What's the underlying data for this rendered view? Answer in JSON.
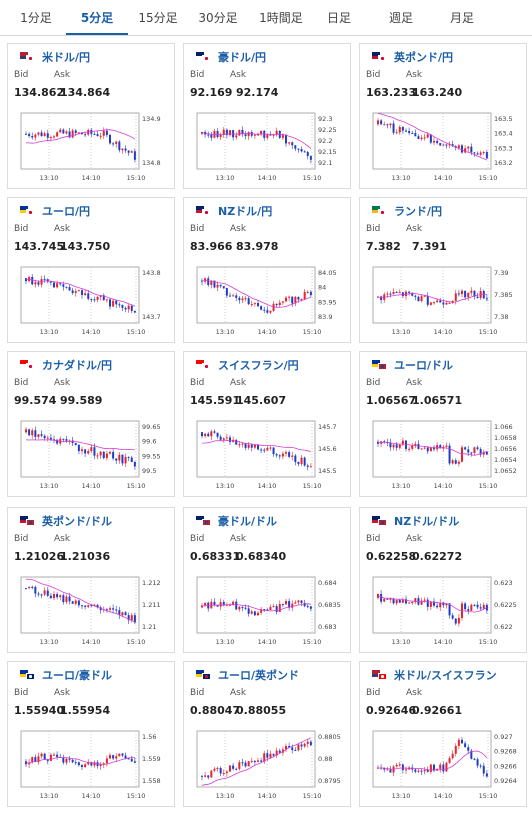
{
  "tabs": [
    {
      "label": "1分足",
      "active": false
    },
    {
      "label": "5分足",
      "active": true
    },
    {
      "label": "15分足",
      "active": false
    },
    {
      "label": "30分足",
      "active": false
    },
    {
      "label": "1時間足",
      "active": false
    },
    {
      "label": "日足",
      "active": false
    },
    {
      "label": "週足",
      "active": false
    },
    {
      "label": "月足",
      "active": false
    }
  ],
  "labels": {
    "bid": "Bid",
    "ask": "Ask"
  },
  "colors": {
    "accent": "#1a5ea8",
    "up": "#e8222a",
    "down": "#1f3cc8",
    "ma": "#d63cd6"
  },
  "cards": [
    {
      "pair": "米ドル/円",
      "flags": [
        "us",
        "jp"
      ],
      "bid": "134.862",
      "ask": "134.864",
      "chart_data": {
        "type": "candlestick",
        "x_ticks": [
          "13:10",
          "14:10",
          "15:10"
        ],
        "y_ticks": [
          "134.9",
          "134.8"
        ],
        "trend": "flat-down",
        "ma": "rising"
      }
    },
    {
      "pair": "豪ドル/円",
      "flags": [
        "au",
        "jp"
      ],
      "bid": "92.169",
      "ask": "92.174",
      "chart_data": {
        "type": "candlestick",
        "x_ticks": [
          "13:10",
          "14:10",
          "15:10"
        ],
        "y_ticks": [
          "92.3",
          "92.25",
          "92.2",
          "92.15",
          "92.1"
        ],
        "trend": "flat-down",
        "ma": "flat"
      }
    },
    {
      "pair": "英ポンド/円",
      "flags": [
        "gb",
        "jp"
      ],
      "bid": "163.233",
      "ask": "163.240",
      "chart_data": {
        "type": "candlestick",
        "x_ticks": [
          "13:10",
          "14:10",
          "15:10"
        ],
        "y_ticks": [
          "163.5",
          "163.4",
          "163.3",
          "163.2"
        ],
        "trend": "down",
        "ma": "falling"
      }
    },
    {
      "pair": "ユーロ/円",
      "flags": [
        "eu",
        "jp"
      ],
      "bid": "143.745",
      "ask": "143.750",
      "chart_data": {
        "type": "candlestick",
        "x_ticks": [
          "13:10",
          "14:10",
          "15:10"
        ],
        "y_ticks": [
          "143.8",
          "143.7"
        ],
        "trend": "down",
        "ma": "flat"
      }
    },
    {
      "pair": "NZドル/円",
      "flags": [
        "nz",
        "jp"
      ],
      "bid": "83.966",
      "ask": "83.978",
      "chart_data": {
        "type": "candlestick",
        "x_ticks": [
          "13:10",
          "14:10",
          "15:10"
        ],
        "y_ticks": [
          "84.05",
          "84",
          "83.95",
          "83.9"
        ],
        "trend": "down-up",
        "ma": "flat"
      }
    },
    {
      "pair": "ランド/円",
      "flags": [
        "za",
        "jp"
      ],
      "bid": "7.382",
      "ask": "7.391",
      "chart_data": {
        "type": "candlestick",
        "x_ticks": [
          "13:10",
          "14:10",
          "15:10"
        ],
        "y_ticks": [
          "7.39",
          "7.385",
          "7.38"
        ],
        "trend": "flat",
        "ma": "flat"
      }
    },
    {
      "pair": "カナダドル/円",
      "flags": [
        "ca",
        "jp"
      ],
      "bid": "99.574",
      "ask": "99.589",
      "chart_data": {
        "type": "candlestick",
        "x_ticks": [
          "13:10",
          "14:10",
          "15:10"
        ],
        "y_ticks": [
          "99.65",
          "99.6",
          "99.55",
          "99.5"
        ],
        "trend": "down",
        "ma": "rising"
      }
    },
    {
      "pair": "スイスフラン/円",
      "flags": [
        "ch",
        "jp"
      ],
      "bid": "145.591",
      "ask": "145.607",
      "chart_data": {
        "type": "candlestick",
        "x_ticks": [
          "13:10",
          "14:10",
          "15:10"
        ],
        "y_ticks": [
          "145.7",
          "145.6",
          "145.5"
        ],
        "trend": "down",
        "ma": "rising"
      }
    },
    {
      "pair": "ユーロ/ドル",
      "flags": [
        "eu",
        "us"
      ],
      "bid": "1.06567",
      "ask": "1.06571",
      "chart_data": {
        "type": "candlestick",
        "x_ticks": [
          "13:10",
          "14:10",
          "15:10"
        ],
        "y_ticks": [
          "1.066",
          "1.0658",
          "1.0656",
          "1.0654",
          "1.0652"
        ],
        "trend": "dip-recover",
        "ma": "flat"
      }
    },
    {
      "pair": "英ポンド/ドル",
      "flags": [
        "gb",
        "us"
      ],
      "bid": "1.21026",
      "ask": "1.21036",
      "chart_data": {
        "type": "candlestick",
        "x_ticks": [
          "13:10",
          "14:10",
          "15:10"
        ],
        "y_ticks": [
          "1.212",
          "1.211",
          "1.21"
        ],
        "trend": "down",
        "ma": "falling"
      }
    },
    {
      "pair": "豪ドル/ドル",
      "flags": [
        "au",
        "us"
      ],
      "bid": "0.68331",
      "ask": "0.68340",
      "chart_data": {
        "type": "candlestick",
        "x_ticks": [
          "13:10",
          "14:10",
          "15:10"
        ],
        "y_ticks": [
          "0.684",
          "0.6835",
          "0.683"
        ],
        "trend": "flat",
        "ma": "flat"
      }
    },
    {
      "pair": "NZドル/ドル",
      "flags": [
        "nz",
        "us"
      ],
      "bid": "0.62258",
      "ask": "0.62272",
      "chart_data": {
        "type": "candlestick",
        "x_ticks": [
          "13:10",
          "14:10",
          "15:10"
        ],
        "y_ticks": [
          "0.623",
          "0.6225",
          "0.622"
        ],
        "trend": "dip-recover",
        "ma": "flat"
      }
    },
    {
      "pair": "ユーロ/豪ドル",
      "flags": [
        "eu",
        "au"
      ],
      "bid": "1.55940",
      "ask": "1.55954",
      "chart_data": {
        "type": "candlestick",
        "x_ticks": [
          "13:10",
          "14:10",
          "15:10"
        ],
        "y_ticks": [
          "1.56",
          "1.559",
          "1.558"
        ],
        "trend": "flat",
        "ma": "flat"
      }
    },
    {
      "pair": "ユーロ/英ポンド",
      "flags": [
        "eu",
        "gb"
      ],
      "bid": "0.88047",
      "ask": "0.88055",
      "chart_data": {
        "type": "candlestick",
        "x_ticks": [
          "13:10",
          "14:10",
          "15:10"
        ],
        "y_ticks": [
          "0.8805",
          "0.88",
          "0.8795"
        ],
        "trend": "up",
        "ma": "rising"
      }
    },
    {
      "pair": "米ドル/スイスフラン",
      "flags": [
        "us",
        "ch"
      ],
      "bid": "0.92646",
      "ask": "0.92661",
      "chart_data": {
        "type": "candlestick",
        "x_ticks": [
          "13:10",
          "14:10",
          "15:10"
        ],
        "y_ticks": [
          "0.927",
          "0.9268",
          "0.9266",
          "0.9264"
        ],
        "trend": "flat-spike",
        "ma": "flat"
      }
    }
  ]
}
